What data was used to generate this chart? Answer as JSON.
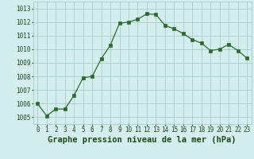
{
  "x": [
    0,
    1,
    2,
    3,
    4,
    5,
    6,
    7,
    8,
    9,
    10,
    11,
    12,
    13,
    14,
    15,
    16,
    17,
    18,
    19,
    20,
    21,
    22,
    23
  ],
  "y": [
    1006.0,
    1005.1,
    1005.6,
    1005.6,
    1006.6,
    1007.9,
    1008.0,
    1009.3,
    1010.3,
    1011.9,
    1012.0,
    1012.2,
    1012.6,
    1012.55,
    1011.75,
    1011.5,
    1011.15,
    1010.7,
    1010.45,
    1009.9,
    1010.0,
    1010.35,
    1009.9,
    1009.35
  ],
  "line_color": "#2d6a2d",
  "marker": "s",
  "marker_size": 2.2,
  "bg_color": "#d4eeee",
  "grid_color": "#aacccc",
  "xlabel": "Graphe pression niveau de la mer (hPa)",
  "xlabel_fontsize": 7.5,
  "ylim": [
    1004.5,
    1013.5
  ],
  "xlim": [
    -0.5,
    23.5
  ],
  "yticks": [
    1005,
    1006,
    1007,
    1008,
    1009,
    1010,
    1011,
    1012,
    1013
  ],
  "xticks": [
    0,
    1,
    2,
    3,
    4,
    5,
    6,
    7,
    8,
    9,
    10,
    11,
    12,
    13,
    14,
    15,
    16,
    17,
    18,
    19,
    20,
    21,
    22,
    23
  ],
  "tick_fontsize": 5.5,
  "label_color": "#1a4a1a"
}
